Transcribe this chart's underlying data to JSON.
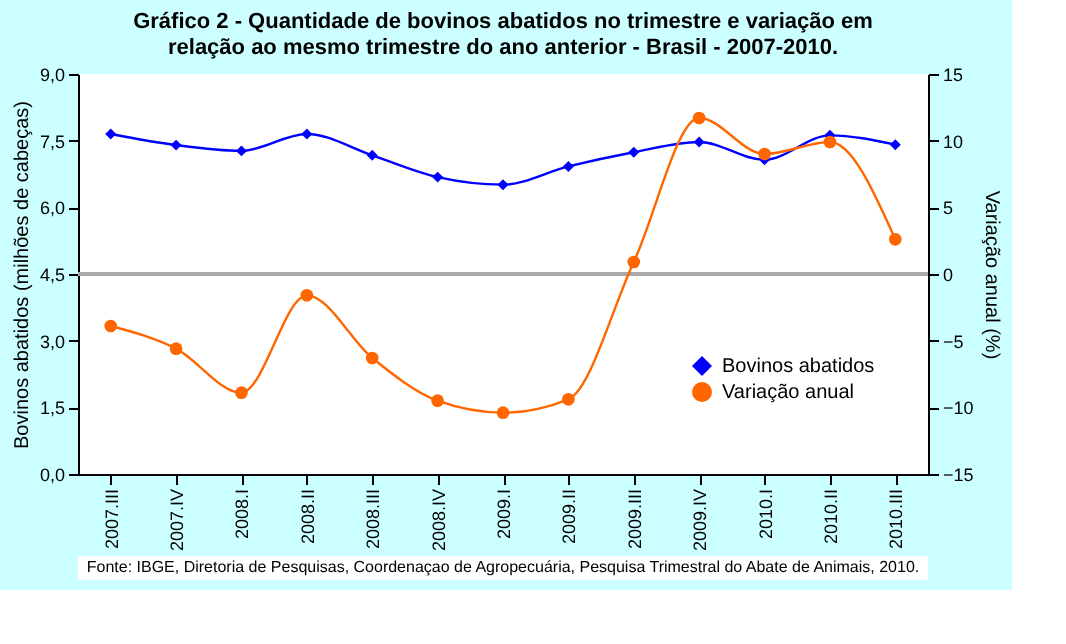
{
  "chart_data": {
    "type": "line",
    "title": "Gráfico 2 - Quantidade de bovinos abatidos no trimestre e variação em\nrelação ao mesmo trimestre do ano anterior - Brasil - 2007-2010.",
    "xlabel": null,
    "ylabel": "Bovinos abatidos (milhões de cabeças)",
    "y2label": "Variação anual (%)",
    "categories": [
      "2007.III",
      "2007.IV",
      "2008.I",
      "2008.II",
      "2008.III",
      "2008.IV",
      "2009.I",
      "2009.II",
      "2009.III",
      "2009.IV",
      "2010.I",
      "2010.II",
      "2010.III"
    ],
    "series": [
      {
        "name": "Bovinos abatidos",
        "color": "#0000ff",
        "marker": "diamond",
        "values": [
          7.65,
          7.4,
          7.27,
          7.65,
          7.17,
          6.68,
          6.51,
          6.92,
          7.24,
          7.47,
          7.07,
          7.62,
          7.41
        ]
      },
      {
        "name": "Variação anual",
        "color": "#ff6600",
        "marker": "circle",
        "axis": "y2",
        "values": [
          -3.9,
          -5.6,
          -8.9,
          -1.6,
          -6.3,
          -9.5,
          -10.4,
          -9.4,
          0.9,
          11.7,
          9.0,
          9.9,
          2.6
        ]
      }
    ],
    "ylim": [
      0,
      9
    ],
    "yticks": [
      {
        "value": 0,
        "label": "0,0"
      },
      {
        "value": 1.5,
        "label": "1,5"
      },
      {
        "value": 3,
        "label": "3,0"
      },
      {
        "value": 4.5,
        "label": "4,5"
      },
      {
        "value": 6,
        "label": "6,0"
      },
      {
        "value": 7.5,
        "label": "7,5"
      },
      {
        "value": 9,
        "label": "9,0"
      }
    ],
    "y2lim": [
      -15,
      15
    ],
    "y2ticks": [
      -15,
      -10,
      -5,
      0,
      5,
      10,
      15
    ],
    "ref_lines": [
      {
        "axis": "y2",
        "value": 0,
        "color": "#aaaaaa"
      }
    ],
    "legend": "bottom right",
    "grid": false,
    "annotations": [
      "Fonte: IBGE, Diretoria de Pesquisas, Coordenaçao de Agropecuária, Pesquisa Trimestral do Abate de Animais, 2010."
    ]
  }
}
